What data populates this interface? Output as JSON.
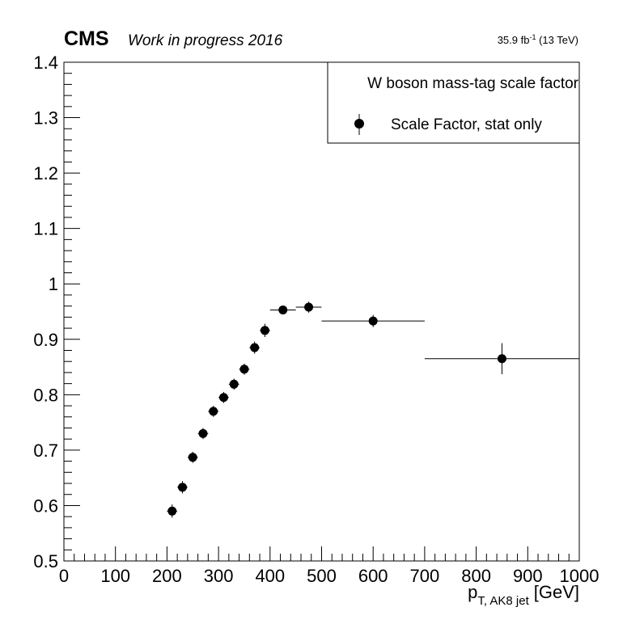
{
  "header": {
    "experiment": "CMS",
    "status": "Work in progress 2016",
    "lumi_value": "35.9 fb",
    "lumi_exp": "-1",
    "lumi_energy": " (13 TeV)"
  },
  "chart_data": {
    "type": "scatter",
    "xlabel_main": "p",
    "xlabel_sub": "T, AK8 jet",
    "xlabel_unit": "[GeV]",
    "ylabel": "",
    "xlim": [
      0,
      1000
    ],
    "ylim": [
      0.5,
      1.4
    ],
    "xticks": [
      0,
      100,
      200,
      300,
      400,
      500,
      600,
      700,
      800,
      900,
      1000
    ],
    "yticks": [
      0.5,
      0.6,
      0.7,
      0.8,
      0.9,
      1,
      1.1,
      1.2,
      1.3,
      1.4
    ],
    "ytick_labels": [
      "0.5",
      "0.6",
      "0.7",
      "0.8",
      "0.9",
      "1",
      "1.1",
      "1.2",
      "1.3",
      "1.4"
    ],
    "legend": {
      "title": "W boson mass-tag scale factor",
      "entry": "Scale Factor, stat only",
      "position": "top-right"
    },
    "grid": false,
    "series": [
      {
        "name": "Scale Factor, stat only",
        "points": [
          {
            "x": 210,
            "x_lo": 200,
            "x_hi": 220,
            "y": 0.59,
            "err": 0.012
          },
          {
            "x": 230,
            "x_lo": 220,
            "x_hi": 240,
            "y": 0.633,
            "err": 0.011
          },
          {
            "x": 250,
            "x_lo": 240,
            "x_hi": 260,
            "y": 0.687,
            "err": 0.01
          },
          {
            "x": 270,
            "x_lo": 260,
            "x_hi": 280,
            "y": 0.73,
            "err": 0.01
          },
          {
            "x": 290,
            "x_lo": 280,
            "x_hi": 300,
            "y": 0.77,
            "err": 0.01
          },
          {
            "x": 310,
            "x_lo": 300,
            "x_hi": 320,
            "y": 0.795,
            "err": 0.01
          },
          {
            "x": 330,
            "x_lo": 320,
            "x_hi": 340,
            "y": 0.819,
            "err": 0.01
          },
          {
            "x": 350,
            "x_lo": 340,
            "x_hi": 360,
            "y": 0.846,
            "err": 0.01
          },
          {
            "x": 370,
            "x_lo": 360,
            "x_hi": 380,
            "y": 0.885,
            "err": 0.011
          },
          {
            "x": 390,
            "x_lo": 380,
            "x_hi": 400,
            "y": 0.916,
            "err": 0.012
          },
          {
            "x": 425,
            "x_lo": 400,
            "x_hi": 450,
            "y": 0.953,
            "err": 0.008
          },
          {
            "x": 475,
            "x_lo": 450,
            "x_hi": 500,
            "y": 0.958,
            "err": 0.01
          },
          {
            "x": 600,
            "x_lo": 500,
            "x_hi": 700,
            "y": 0.933,
            "err": 0.011
          },
          {
            "x": 850,
            "x_lo": 700,
            "x_hi": 1000,
            "y": 0.865,
            "err": 0.028
          }
        ]
      }
    ]
  }
}
